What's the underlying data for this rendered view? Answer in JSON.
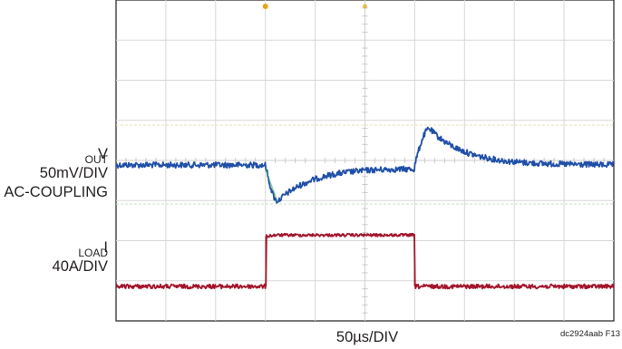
{
  "chart_data": {
    "type": "line",
    "x_scale_label": "50µs/DIV",
    "figure_id": "dc2924aab F13",
    "grid": "on",
    "trace_color_vout": "#1f4fa8",
    "trace_color_iload": "#a3142a",
    "trigger_marker_color": "#e8a317",
    "channels": [
      {
        "label_main": "V",
        "label_sub": "OUT",
        "label_lines": [
          "50mV/DIV",
          "AC-COUPLING"
        ],
        "scale": "50mV/DIV",
        "coupling": "AC-COUPLING",
        "x_div": [
          0,
          3,
          3.25,
          6,
          6.3,
          10
        ],
        "y_div": [
          0,
          0,
          -0.9,
          0,
          0.9,
          0
        ],
        "unit": "DIV"
      },
      {
        "label_main": "I",
        "label_sub": "LOAD",
        "label_lines": [
          "40A/DIV"
        ],
        "scale": "40A/DIV",
        "x_div": [
          0,
          3,
          3.01,
          3.2,
          5.99,
          6,
          10
        ],
        "y_div": [
          0,
          0,
          1.25,
          1.28,
          1.28,
          0,
          0
        ],
        "unit": "DIV"
      }
    ]
  }
}
